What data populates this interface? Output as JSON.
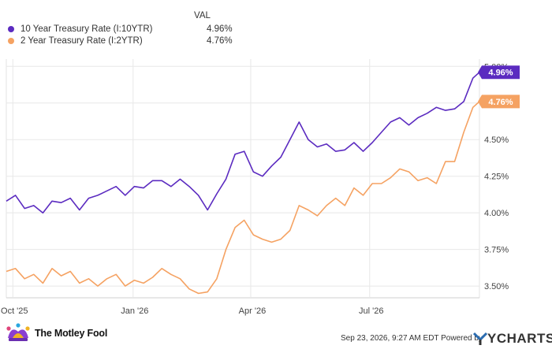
{
  "legend": {
    "header": "VAL",
    "items": [
      {
        "label": "10 Year Treasury Rate (I:10YTR)",
        "value": "4.96%",
        "color": "#5b2bc0"
      },
      {
        "label": "2 Year Treasury Rate (I:2YTR)",
        "value": "4.76%",
        "color": "#f5a262"
      }
    ]
  },
  "footer": {
    "brand": "The Motley Fool",
    "timestamp": "Sep 23, 2026, 9:27 AM EDT Powered by",
    "provider": "YCHARTS"
  },
  "chart_data": {
    "type": "line",
    "x_ticks": [
      "Oct '25",
      "Jan '26",
      "Apr '26",
      "Jul '26"
    ],
    "y_ticks": [
      "3.50%",
      "3.75%",
      "4.00%",
      "4.25%",
      "4.50%",
      "4.75%",
      "5.00%"
    ],
    "ylim": [
      3.42,
      5.05
    ],
    "x_range": [
      "2025-09-26",
      "2026-09-23"
    ],
    "grid": true,
    "end_labels": [
      "4.96%",
      "4.76%"
    ],
    "series": [
      {
        "name": "10 Year Treasury Rate (I:10YTR)",
        "color": "#5b2bc0",
        "x": [
          "2025-09-26",
          "2025-10-03",
          "2025-10-10",
          "2025-10-17",
          "2025-10-24",
          "2025-10-31",
          "2025-11-07",
          "2025-11-14",
          "2025-11-21",
          "2025-11-28",
          "2025-12-05",
          "2025-12-12",
          "2025-12-19",
          "2025-12-26",
          "2026-01-02",
          "2026-01-09",
          "2026-01-16",
          "2026-01-23",
          "2026-01-30",
          "2026-02-06",
          "2026-02-13",
          "2026-02-20",
          "2026-02-27",
          "2026-03-06",
          "2026-03-13",
          "2026-03-20",
          "2026-03-27",
          "2026-04-03",
          "2026-04-10",
          "2026-04-17",
          "2026-04-24",
          "2026-05-01",
          "2026-05-08",
          "2026-05-15",
          "2026-05-22",
          "2026-05-29",
          "2026-06-05",
          "2026-06-12",
          "2026-06-19",
          "2026-06-26",
          "2026-07-03",
          "2026-07-10",
          "2026-07-17",
          "2026-07-24",
          "2026-07-31",
          "2026-08-07",
          "2026-08-14",
          "2026-08-21",
          "2026-08-28",
          "2026-09-04",
          "2026-09-11",
          "2026-09-18",
          "2026-09-23"
        ],
        "y": [
          4.08,
          4.12,
          4.03,
          4.05,
          4.0,
          4.08,
          4.07,
          4.1,
          4.02,
          4.1,
          4.12,
          4.15,
          4.18,
          4.12,
          4.18,
          4.17,
          4.22,
          4.22,
          4.18,
          4.23,
          4.18,
          4.12,
          4.02,
          4.13,
          4.23,
          4.4,
          4.42,
          4.28,
          4.25,
          4.32,
          4.38,
          4.5,
          4.62,
          4.5,
          4.45,
          4.47,
          4.42,
          4.43,
          4.48,
          4.42,
          4.48,
          4.55,
          4.62,
          4.65,
          4.6,
          4.65,
          4.68,
          4.72,
          4.7,
          4.71,
          4.76,
          4.92,
          4.96
        ]
      },
      {
        "name": "2 Year Treasury Rate (I:2YTR)",
        "color": "#f5a262",
        "x": [
          "2025-09-26",
          "2025-10-03",
          "2025-10-10",
          "2025-10-17",
          "2025-10-24",
          "2025-10-31",
          "2025-11-07",
          "2025-11-14",
          "2025-11-21",
          "2025-11-28",
          "2025-12-05",
          "2025-12-12",
          "2025-12-19",
          "2025-12-26",
          "2026-01-02",
          "2026-01-09",
          "2026-01-16",
          "2026-01-23",
          "2026-01-30",
          "2026-02-06",
          "2026-02-13",
          "2026-02-20",
          "2026-02-27",
          "2026-03-06",
          "2026-03-13",
          "2026-03-20",
          "2026-03-27",
          "2026-04-03",
          "2026-04-10",
          "2026-04-17",
          "2026-04-24",
          "2026-05-01",
          "2026-05-08",
          "2026-05-15",
          "2026-05-22",
          "2026-05-29",
          "2026-06-05",
          "2026-06-12",
          "2026-06-19",
          "2026-06-26",
          "2026-07-03",
          "2026-07-10",
          "2026-07-17",
          "2026-07-24",
          "2026-07-31",
          "2026-08-07",
          "2026-08-14",
          "2026-08-21",
          "2026-08-28",
          "2026-09-04",
          "2026-09-11",
          "2026-09-18",
          "2026-09-23"
        ],
        "y": [
          3.6,
          3.62,
          3.55,
          3.58,
          3.52,
          3.62,
          3.57,
          3.6,
          3.52,
          3.55,
          3.5,
          3.55,
          3.58,
          3.5,
          3.54,
          3.52,
          3.56,
          3.62,
          3.58,
          3.55,
          3.48,
          3.45,
          3.46,
          3.55,
          3.75,
          3.9,
          3.95,
          3.85,
          3.82,
          3.8,
          3.82,
          3.88,
          4.05,
          4.02,
          3.98,
          4.05,
          4.1,
          4.05,
          4.17,
          4.12,
          4.2,
          4.2,
          4.24,
          4.3,
          4.28,
          4.22,
          4.24,
          4.2,
          4.35,
          4.35,
          4.55,
          4.72,
          4.76
        ]
      }
    ]
  }
}
